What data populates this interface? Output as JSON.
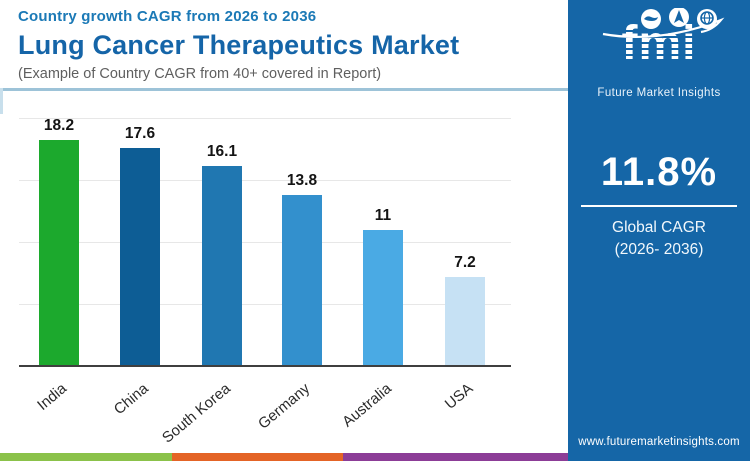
{
  "header": {
    "eyebrow": "Country growth CAGR from 2026 to 2036",
    "title": "Lung Cancer Therapeutics Market",
    "subtitle": "(Example of Country CAGR from 40+ covered in Report)"
  },
  "chart_data": {
    "type": "bar",
    "title": "Lung Cancer Therapeutics Market — Country growth CAGR from 2026 to 2036",
    "categories": [
      "India",
      "China",
      "South Korea",
      "Germany",
      "Australia",
      "USA"
    ],
    "values": [
      18.2,
      17.6,
      16.1,
      13.8,
      11,
      7.2
    ],
    "value_labels": [
      "18.2",
      "17.6",
      "16.1",
      "13.8",
      "11",
      "7.2"
    ],
    "bar_colors": [
      "#1ca92d",
      "#0d5d95",
      "#2077b1",
      "#3390cd",
      "#4aaae4",
      "#c6e1f4"
    ],
    "xlabel": "",
    "ylabel": "",
    "ylim": [
      0,
      20
    ],
    "gridlines": [
      5,
      10,
      15,
      20
    ],
    "grid": true,
    "legend": "none",
    "y_axis_labels_visible": false
  },
  "sidebar": {
    "bg_color": "#1566a7",
    "logo_text": "fmi",
    "logo_tagline": "Future Market Insights",
    "logo_icons": [
      "map-icon",
      "compass-icon",
      "globe-icon"
    ],
    "stat_value": "11.8%",
    "stat_label_line1": "Global CAGR",
    "stat_label_line2": "(2026- 2036)",
    "website": "www.futuremarketinsights.com"
  },
  "footer": {
    "stripe_colors": [
      "#8bc24a",
      "#e46426",
      "#8c3d97"
    ]
  }
}
